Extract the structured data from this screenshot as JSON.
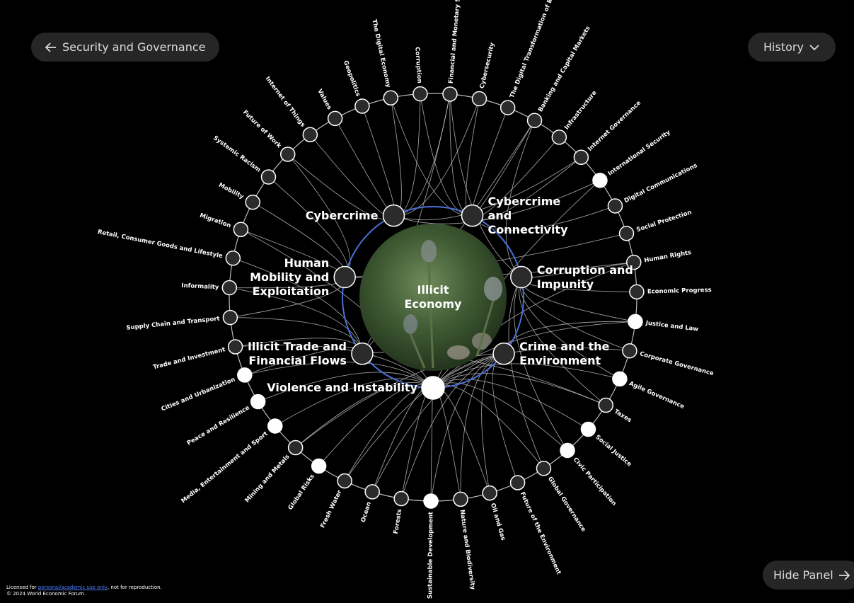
{
  "nav": {
    "back": "Security and Governance",
    "history": "History",
    "hide_panel": "Hide Panel"
  },
  "center": {
    "label": "Illicit Economy"
  },
  "inner_nodes": [
    {
      "label": "Violence and Instability",
      "highlighted": true,
      "links": [
        "Justice and Law",
        "Agile Governance",
        "Social Justice",
        "Civic Participation",
        "Sustainable Development",
        "Global Risks",
        "Media, Entertainment and Sport",
        "Peace and Resilience",
        "Cities and Urbanization",
        "International Security",
        "Forests",
        "Ocean",
        "Fresh Water",
        "Mining and Metals",
        "Oil and Gas",
        "Nature and Biodiversity",
        "Global Governance",
        "Taxes",
        "Corporate Governance",
        "Human Rights",
        "Migration",
        "Trade and Investment"
      ]
    },
    {
      "label": "Illicit Trade and Financial Flows",
      "highlighted": false,
      "links": [
        "Trade and Investment",
        "Supply Chain and Transport",
        "Retail, Consumer Goods and Lifestyle",
        "Informality",
        "Banking and Capital Markets",
        "Taxes",
        "Financial and Monetary Systems",
        "Cities and Urbanization"
      ]
    },
    {
      "label": "Human Mobility and Exploitation",
      "highlighted": false,
      "links": [
        "Migration",
        "Mobility",
        "Systemic Racism",
        "Informality",
        "Human Rights",
        "Supply Chain and Transport",
        "Social Protection",
        "Future of Work"
      ]
    },
    {
      "label": "Cybercrime",
      "highlighted": false,
      "links": [
        "Corruption",
        "The Digital Economy",
        "Geopolitics",
        "Values",
        "Internet of Things",
        "Future of Work",
        "Cybersecurity",
        "Financial and Monetary Systems",
        "Internet Governance",
        "International Security"
      ]
    },
    {
      "label": "Cybercrime and Connectivity",
      "highlighted": false,
      "links": [
        "The Digital Transformation of Business",
        "Cybersecurity",
        "Infrastructure",
        "Digital Communications",
        "Internet Governance",
        "Banking and Capital Markets",
        "Financial and Monetary Systems",
        "The Digital Economy",
        "Corruption"
      ]
    },
    {
      "label": "Corruption and Impunity",
      "highlighted": false,
      "links": [
        "Economic Progress",
        "Justice and Law",
        "Corporate Governance",
        "Taxes",
        "Human Rights",
        "Banking and Capital Markets",
        "Financial and Monetary Systems",
        "Agile Governance",
        "Civic Participation",
        "Global Governance"
      ]
    },
    {
      "label": "Crime and the Environment",
      "highlighted": false,
      "links": [
        "Nature and Biodiversity",
        "Forests",
        "Ocean",
        "Oil and Gas",
        "Fresh Water",
        "Mining and Metals",
        "Future of the Environment",
        "Sustainable Development",
        "Justice and Law"
      ]
    }
  ],
  "outer_nodes": [
    {
      "label": "Corruption",
      "highlighted": false
    },
    {
      "label": "Financial and Monetary Systems",
      "highlighted": false
    },
    {
      "label": "Cybersecurity",
      "highlighted": false
    },
    {
      "label": "The Digital Transformation of Business",
      "highlighted": false
    },
    {
      "label": "Banking and Capital Markets",
      "highlighted": false
    },
    {
      "label": "Infrastructure",
      "highlighted": false
    },
    {
      "label": "Internet Governance",
      "highlighted": false
    },
    {
      "label": "International Security",
      "highlighted": true
    },
    {
      "label": "Digital Communications",
      "highlighted": false
    },
    {
      "label": "Social Protection",
      "highlighted": false
    },
    {
      "label": "Human Rights",
      "highlighted": false
    },
    {
      "label": "Economic Progress",
      "highlighted": false
    },
    {
      "label": "Justice and Law",
      "highlighted": true
    },
    {
      "label": "Corporate Governance",
      "highlighted": false
    },
    {
      "label": "Agile Governance",
      "highlighted": true
    },
    {
      "label": "Taxes",
      "highlighted": false
    },
    {
      "label": "Social Justice",
      "highlighted": true
    },
    {
      "label": "Civic Participation",
      "highlighted": true
    },
    {
      "label": "Global Governance",
      "highlighted": false
    },
    {
      "label": "Future of the Environment",
      "highlighted": false
    },
    {
      "label": "Oil and Gas",
      "highlighted": false
    },
    {
      "label": "Nature and Biodiversity",
      "highlighted": false
    },
    {
      "label": "Sustainable Development",
      "highlighted": true
    },
    {
      "label": "Forests",
      "highlighted": false
    },
    {
      "label": "Ocean",
      "highlighted": false
    },
    {
      "label": "Fresh Water",
      "highlighted": false
    },
    {
      "label": "Global Risks",
      "highlighted": true
    },
    {
      "label": "Mining and Metals",
      "highlighted": false
    },
    {
      "label": "Media, Entertainment and Sport",
      "highlighted": true
    },
    {
      "label": "Peace and Resilience",
      "highlighted": true
    },
    {
      "label": "Cities and Urbanization",
      "highlighted": true
    },
    {
      "label": "Trade and Investment",
      "highlighted": false
    },
    {
      "label": "Supply Chain and Transport",
      "highlighted": false
    },
    {
      "label": "Informality",
      "highlighted": false
    },
    {
      "label": "Retail, Consumer Goods and Lifestyle",
      "highlighted": false
    },
    {
      "label": "Migration",
      "highlighted": false
    },
    {
      "label": "Mobility",
      "highlighted": false
    },
    {
      "label": "Systemic Racism",
      "highlighted": false
    },
    {
      "label": "Future of Work",
      "highlighted": false
    },
    {
      "label": "Internet of Things",
      "highlighted": false
    },
    {
      "label": "Values",
      "highlighted": false
    },
    {
      "label": "Geopolitics",
      "highlighted": false
    },
    {
      "label": "The Digital Economy",
      "highlighted": false
    }
  ],
  "footer": {
    "license_prefix": "Licensed for",
    "license_link": "personal/academic use only",
    "license_suffix": ", not for reproduction.",
    "copyright": "© 2024 World Economic Forum."
  }
}
